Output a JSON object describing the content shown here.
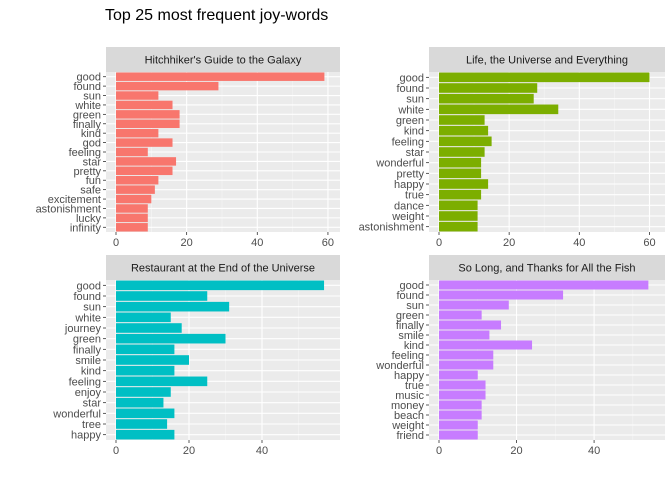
{
  "title": "Top 25 most frequent joy-words",
  "chart_data": [
    {
      "type": "bar",
      "orientation": "horizontal",
      "facet": "Hitchhiker's Guide to the Galaxy",
      "color": "#F8766D",
      "xlim": [
        0,
        62
      ],
      "xticks": [
        0,
        20,
        40,
        60
      ],
      "categories": [
        "good",
        "found",
        "sun",
        "white",
        "green",
        "finally",
        "kind",
        "god",
        "feeling",
        "star",
        "pretty",
        "fun",
        "safe",
        "excitement",
        "astonishment",
        "lucky",
        "infinity"
      ],
      "values": [
        59,
        29,
        12,
        16,
        18,
        18,
        12,
        16,
        9,
        17,
        16,
        12,
        11,
        10,
        9,
        9,
        9
      ]
    },
    {
      "type": "bar",
      "orientation": "horizontal",
      "facet": "Life, the Universe and Everything",
      "color": "#7CAE00",
      "xlim": [
        0,
        63
      ],
      "xticks": [
        0,
        20,
        40,
        60
      ],
      "categories": [
        "good",
        "found",
        "sun",
        "white",
        "green",
        "kind",
        "feeling",
        "star",
        "wonderful",
        "pretty",
        "happy",
        "true",
        "dance",
        "weight",
        "astonishment"
      ],
      "values": [
        60,
        28,
        27,
        34,
        13,
        14,
        15,
        13,
        12,
        12,
        14,
        12,
        11,
        11,
        11
      ]
    },
    {
      "type": "bar",
      "orientation": "horizontal",
      "facet": "Restaurant at the End of the Universe",
      "color": "#00BFC4",
      "xlim": [
        0,
        60
      ],
      "xticks": [
        0,
        20,
        40
      ],
      "categories": [
        "good",
        "found",
        "sun",
        "white",
        "journey",
        "green",
        "finally",
        "smile",
        "kind",
        "feeling",
        "enjoy",
        "star",
        "wonderful",
        "tree",
        "happy"
      ],
      "values": [
        57,
        25,
        31,
        15,
        18,
        30,
        16,
        20,
        16,
        25,
        15,
        13,
        16,
        14,
        16
      ]
    },
    {
      "type": "bar",
      "orientation": "horizontal",
      "facet": "So Long, and Thanks for All the Fish",
      "color": "#C77CFF",
      "xlim": [
        0,
        57
      ],
      "xticks": [
        0,
        20,
        40
      ],
      "categories": [
        "good",
        "found",
        "sun",
        "green",
        "finally",
        "smile",
        "kind",
        "feeling",
        "wonderful",
        "happy",
        "true",
        "music",
        "money",
        "beach",
        "weight",
        "friend"
      ],
      "values": [
        54,
        32,
        18,
        11,
        16,
        13,
        24,
        14,
        14,
        10,
        12,
        12,
        11,
        11,
        10,
        10
      ]
    }
  ]
}
